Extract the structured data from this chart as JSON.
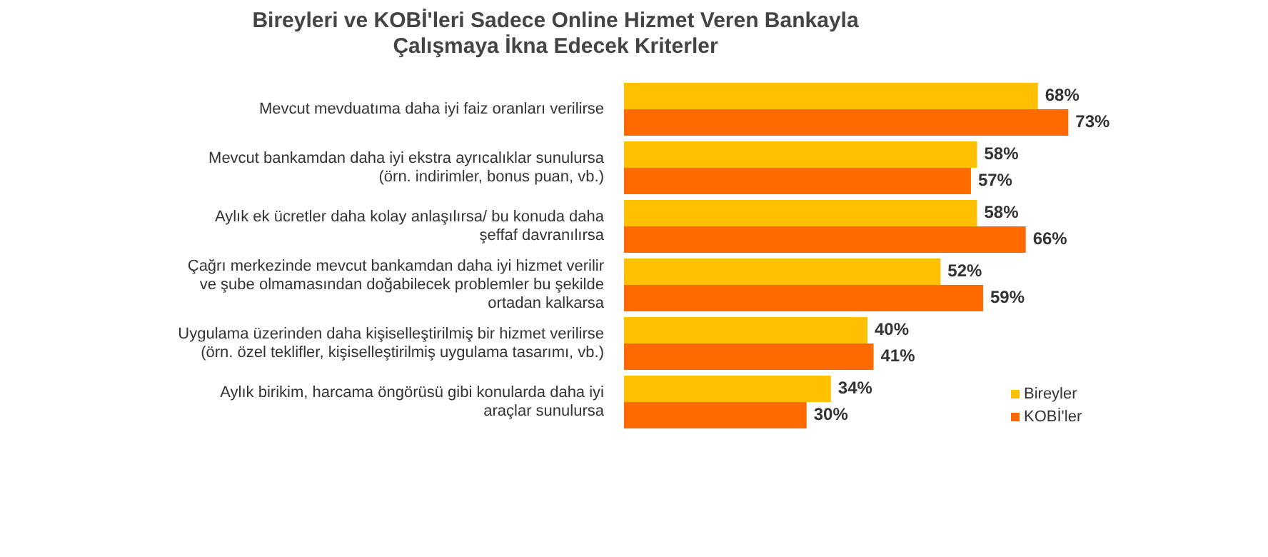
{
  "chart_data": {
    "type": "bar",
    "orientation": "horizontal",
    "title": "Bireyleri ve KOBİ'leri Sadece Online Hizmet Veren Bankayla Çalışmaya İkna Edecek Kriterler",
    "categories": [
      "Mevcut mevduatıma daha iyi faiz oranları verilirse",
      "Mevcut bankamdan daha iyi ekstra ayrıcalıklar sunulursa (örn. indirimler, bonus puan, vb.)",
      "Aylık ek ücretler daha kolay anlaşılırsa/ bu konuda daha şeffaf davranılırsa",
      "Çağrı merkezinde mevcut bankamdan daha iyi hizmet verilir ve şube olmamasından doğabilecek problemler bu şekilde ortadan kalkarsa",
      "Uygulama üzerinden daha kişiselleştirilmiş bir hizmet verilirse (örn. özel teklifler, kişiselleştirilmiş uygulama tasarımı, vb.)",
      "Aylık birikim, harcama öngörüsü gibi konularda daha iyi araçlar sunulursa"
    ],
    "series": [
      {
        "name": "Bireyler",
        "color": "#ffc000",
        "values": [
          68,
          58,
          58,
          52,
          40,
          34
        ],
        "value_labels": [
          "68%",
          "58%",
          "58%",
          "52%",
          "40%",
          "34%"
        ]
      },
      {
        "name": "KOBİ'ler",
        "color": "#ff6a00",
        "values": [
          73,
          57,
          66,
          59,
          41,
          30
        ],
        "value_labels": [
          "73%",
          "57%",
          "66%",
          "59%",
          "41%",
          "30%"
        ]
      }
    ],
    "grid": false,
    "legend": "bottom right",
    "tick_labels": "y"
  }
}
